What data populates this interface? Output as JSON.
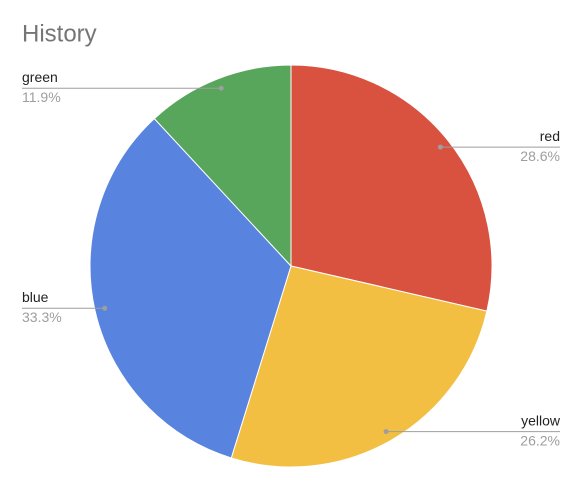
{
  "chart_data": {
    "type": "pie",
    "title": "History",
    "categories": [
      "red",
      "yellow",
      "blue",
      "green"
    ],
    "values": [
      28.6,
      26.2,
      33.3,
      11.9
    ],
    "value_labels": [
      "28.6%",
      "26.2%",
      "33.3%",
      "11.9%"
    ],
    "colors": [
      "#d9513f",
      "#f2bf42",
      "#5884e0",
      "#58a65c"
    ]
  }
}
